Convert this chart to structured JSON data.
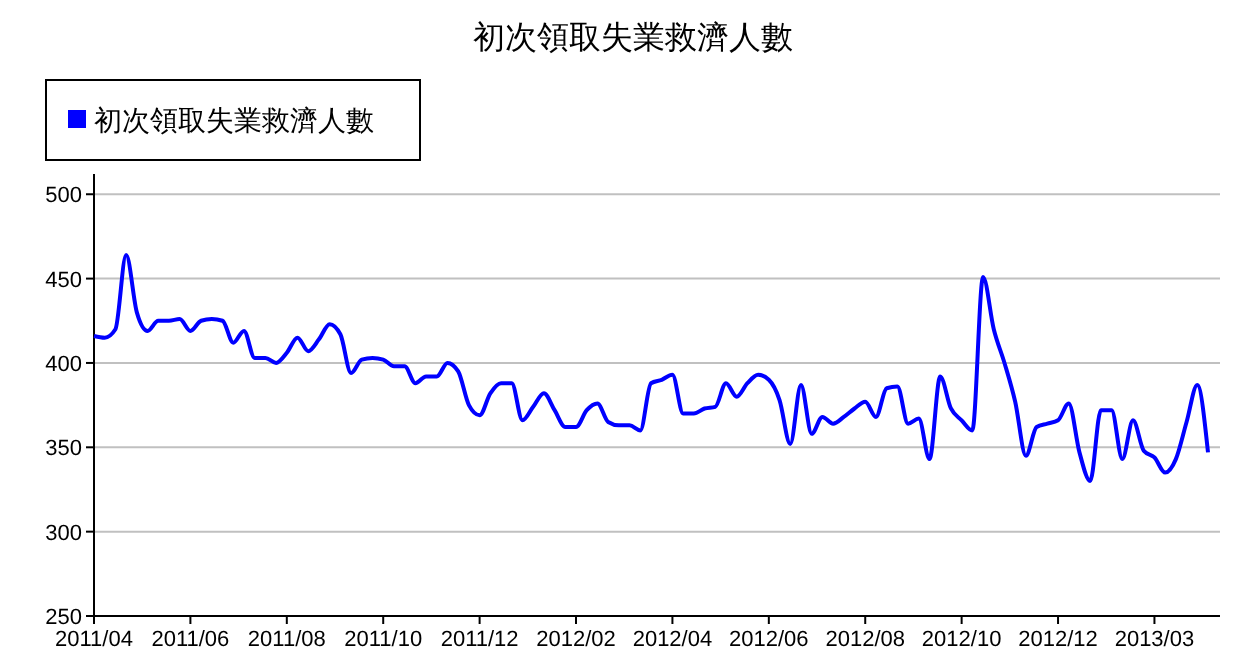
{
  "chart_data": {
    "type": "line",
    "title": "初次領取失業救濟人數",
    "categories": [
      "2011/04",
      null,
      null,
      null,
      null,
      null,
      null,
      null,
      null,
      "2011/06",
      null,
      null,
      null,
      null,
      null,
      null,
      null,
      null,
      "2011/08",
      null,
      null,
      null,
      null,
      null,
      null,
      null,
      null,
      "2011/10",
      null,
      null,
      null,
      null,
      null,
      null,
      null,
      null,
      "2011/12",
      null,
      null,
      null,
      null,
      null,
      null,
      null,
      null,
      "2012/02",
      null,
      null,
      null,
      null,
      null,
      null,
      null,
      null,
      "2012/04",
      null,
      null,
      null,
      null,
      null,
      null,
      null,
      null,
      "2012/06",
      null,
      null,
      null,
      null,
      null,
      null,
      null,
      null,
      "2012/08",
      null,
      null,
      null,
      null,
      null,
      null,
      null,
      null,
      "2012/10",
      null,
      null,
      null,
      null,
      null,
      null,
      null,
      null,
      "2012/12",
      null,
      null,
      null,
      null,
      null,
      null,
      null,
      null,
      "2013/03",
      null,
      null,
      null,
      null,
      null
    ],
    "series": [
      {
        "name": "初次領取失業救濟人數",
        "color": "#0000ff",
        "values": [
          416,
          415,
          420,
          464,
          430,
          419,
          425,
          425,
          426,
          419,
          425,
          426,
          425,
          412,
          419,
          403,
          403,
          400,
          406,
          415,
          407,
          414,
          423,
          417,
          394,
          402,
          403,
          402,
          398,
          398,
          388,
          392,
          392,
          400,
          395,
          375,
          369,
          382,
          388,
          388,
          366,
          374,
          382,
          372,
          362,
          362,
          372,
          376,
          365,
          363,
          363,
          360,
          388,
          390,
          393,
          370,
          370,
          373,
          374,
          388,
          380,
          388,
          393,
          390,
          378,
          352,
          387,
          358,
          368,
          364,
          368,
          373,
          377,
          368,
          385,
          386,
          364,
          367,
          343,
          392,
          373,
          366,
          360,
          451,
          420,
          400,
          377,
          345,
          362,
          364,
          366,
          376,
          347,
          330,
          372,
          372,
          343,
          366,
          348,
          344,
          335,
          343,
          365,
          387,
          347
        ]
      }
    ],
    "ylim": [
      250,
      512
    ],
    "yticks": [
      250,
      300,
      350,
      400,
      450,
      500
    ],
    "grid": "y",
    "legend": "top left",
    "marker": "none",
    "line_style": "solid"
  }
}
